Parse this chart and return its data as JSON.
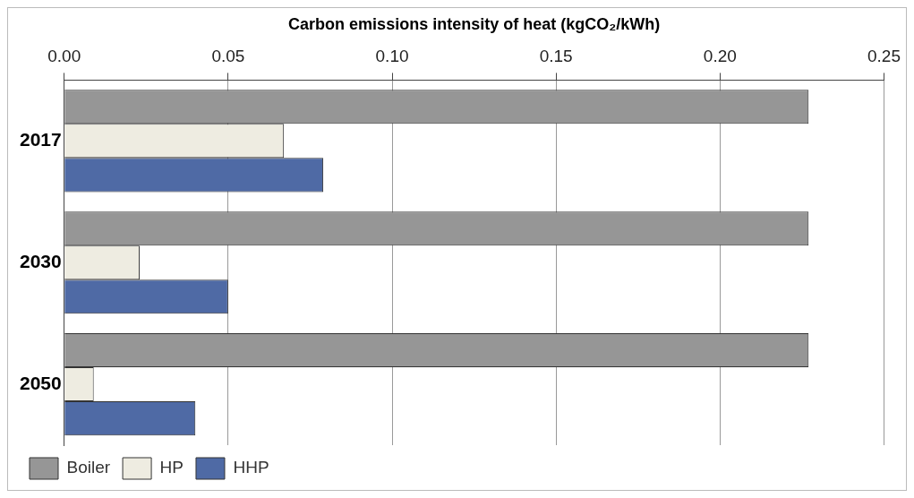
{
  "chart_data": {
    "type": "bar",
    "orientation": "horizontal",
    "xlabel": "Carbon emissions intensity of heat (kgCO₂/kWh)",
    "categories": [
      "2017",
      "2030",
      "2050"
    ],
    "series": [
      {
        "name": "Boiler",
        "color": "#969696",
        "values": [
          0.227,
          0.227,
          0.227
        ]
      },
      {
        "name": "HP",
        "color": "#eeece1",
        "values": [
          0.067,
          0.023,
          0.009
        ]
      },
      {
        "name": "HHP",
        "color": "#4f6aa5",
        "values": [
          0.079,
          0.05,
          0.04
        ]
      }
    ],
    "xlim": [
      0,
      0.25
    ],
    "xticks": [
      {
        "value": 0,
        "label": "0.00"
      },
      {
        "value": 0.05,
        "label": "0.05"
      },
      {
        "value": 0.1,
        "label": "0.10"
      },
      {
        "value": 0.15,
        "label": "0.15"
      },
      {
        "value": 0.2,
        "label": "0.20"
      },
      {
        "value": 0.25,
        "label": "0.25"
      }
    ],
    "grid": "x",
    "legend": "bottom left"
  }
}
